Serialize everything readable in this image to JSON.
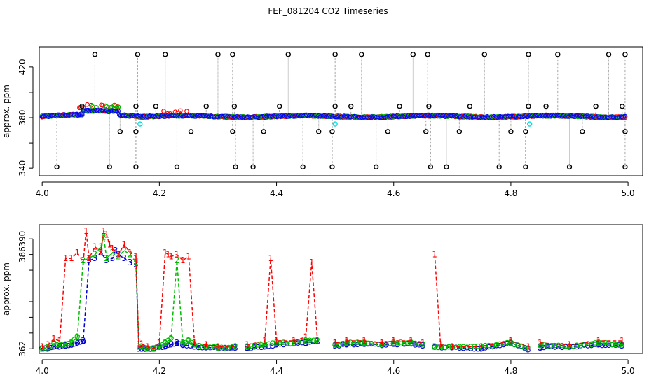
{
  "title": "FEF_081204  CO2 Timeseries",
  "chart_data": [
    {
      "type": "scatter",
      "name": "top-panel",
      "ylabel": "approx. ppm",
      "xlim": [
        3.995,
        5.025
      ],
      "ylim": [
        334,
        436
      ],
      "xticks": [
        4.0,
        4.2,
        4.4,
        4.6,
        4.8,
        5.0
      ],
      "xtick_labels": [
        "4.0",
        "4.2",
        "4.4",
        "4.6",
        "4.8",
        "5.0"
      ],
      "yticks": [
        340,
        360,
        380,
        400,
        420
      ],
      "ytick_labels": [
        "340",
        "",
        "380",
        "",
        "420"
      ],
      "segments": [
        [
          4.0,
          4.165
        ],
        [
          4.168,
          4.33
        ],
        [
          4.333,
          4.497
        ],
        [
          4.5,
          4.663
        ],
        [
          4.666,
          4.83
        ],
        [
          4.833,
          4.995
        ]
      ],
      "baseline_ppm": 381,
      "outliers_high": [
        4.09,
        4.163,
        4.21,
        4.3,
        4.325,
        4.42,
        4.5,
        4.545,
        4.633,
        4.658,
        4.755,
        4.83,
        4.88,
        4.967,
        4.995
      ],
      "outliers_low": [
        4.025,
        4.115,
        4.16,
        4.23,
        4.33,
        4.36,
        4.445,
        4.495,
        4.57,
        4.663,
        4.69,
        4.78,
        4.825,
        4.9,
        4.995
      ],
      "outliers_mid_upper": [
        4.068,
        4.16,
        4.194,
        4.28,
        4.328,
        4.405,
        4.5,
        4.527,
        4.61,
        4.66,
        4.73,
        4.83,
        4.86,
        4.945,
        4.99
      ],
      "outliers_mid_lower": [
        4.133,
        4.16,
        4.254,
        4.325,
        4.378,
        4.472,
        4.495,
        4.59,
        4.655,
        4.712,
        4.8,
        4.825,
        4.922,
        4.995
      ],
      "cyan_points": [
        [
          4.167,
          375
        ],
        [
          4.5,
          375
        ],
        [
          4.832,
          375
        ]
      ],
      "series_colors": {
        "ch1": "#ff0000",
        "ch2": "#00bb00",
        "ch3": "#0000ff",
        "outlier": "#000000",
        "cyan": "#00dddd"
      }
    },
    {
      "type": "line",
      "name": "bottom-panel",
      "ylabel": "approx. ppm",
      "xlim": [
        3.995,
        5.025
      ],
      "ylim": [
        360.8,
        393.6
      ],
      "xticks": [
        4.0,
        4.2,
        4.4,
        4.6,
        4.8,
        5.0
      ],
      "xtick_labels": [
        "4.0",
        "4.2",
        "4.4",
        "4.6",
        "4.8",
        "5.0"
      ],
      "yticks": [
        362,
        366,
        370,
        374,
        378,
        382,
        386,
        390
      ],
      "ytick_labels": [
        "362",
        "",
        "",
        "",
        "",
        "",
        "386",
        "390"
      ],
      "gaps": [
        [
          4.165,
          4.168
        ],
        [
          4.33,
          4.333
        ],
        [
          4.497,
          4.5
        ],
        [
          4.663,
          4.666
        ],
        [
          4.83,
          4.833
        ]
      ],
      "series": [
        {
          "name": "1",
          "color": "#ff0000",
          "x": [
            4.0,
            4.01,
            4.02,
            4.03,
            4.04,
            4.05,
            4.06,
            4.07,
            4.075,
            4.08,
            4.09,
            4.1,
            4.105,
            4.11,
            4.115,
            4.12,
            4.13,
            4.14,
            4.15,
            4.16,
            4.165,
            4.17,
            4.18,
            4.19,
            4.2,
            4.21,
            4.215,
            4.22,
            4.23,
            4.24,
            4.25,
            4.26,
            4.28,
            4.3,
            4.33,
            4.35,
            4.38,
            4.39,
            4.4,
            4.43,
            4.45,
            4.46,
            4.47,
            4.5,
            4.52,
            4.55,
            4.58,
            4.6,
            4.63,
            4.65,
            4.67,
            4.68,
            4.7,
            4.75,
            4.8,
            4.83,
            4.85,
            4.9,
            4.95,
            4.99
          ],
          "y": [
            362.5,
            363.0,
            364.5,
            364.0,
            385.0,
            385.0,
            386.5,
            384.0,
            392.0,
            385.0,
            388.0,
            386.5,
            392.0,
            391.0,
            388.5,
            387.5,
            386.0,
            388.5,
            386.5,
            385.5,
            363.0,
            363.2,
            362.5,
            362.0,
            363.5,
            386.5,
            386.0,
            385.5,
            386.0,
            384.5,
            385.5,
            363.5,
            363.0,
            362.5,
            362.5,
            363.0,
            364.0,
            385.0,
            364.0,
            364.0,
            365.0,
            384.0,
            364.0,
            363.5,
            364.0,
            364.0,
            363.5,
            364.0,
            364.0,
            363.5,
            386.0,
            363.0,
            362.5,
            362.5,
            364.0,
            362.5,
            363.5,
            363.0,
            364.0,
            364.0
          ]
        },
        {
          "name": "2",
          "color": "#00bb00",
          "x": [
            4.0,
            4.01,
            4.02,
            4.03,
            4.04,
            4.05,
            4.06,
            4.07,
            4.08,
            4.09,
            4.1,
            4.105,
            4.11,
            4.12,
            4.13,
            4.14,
            4.15,
            4.16,
            4.165,
            4.17,
            4.18,
            4.19,
            4.2,
            4.21,
            4.22,
            4.23,
            4.24,
            4.25,
            4.26,
            4.28,
            4.3,
            4.33,
            4.35,
            4.38,
            4.4,
            4.43,
            4.45,
            4.47,
            4.5,
            4.52,
            4.55,
            4.58,
            4.6,
            4.63,
            4.65,
            4.67,
            4.7,
            4.75,
            4.8,
            4.83,
            4.85,
            4.9,
            4.95,
            4.99
          ],
          "y": [
            362.0,
            362.3,
            363.3,
            363.0,
            363.0,
            363.5,
            365.0,
            384.5,
            385.0,
            386.0,
            388.0,
            390.5,
            385.0,
            386.5,
            385.5,
            387.0,
            386.0,
            384.0,
            362.5,
            362.5,
            362.0,
            362.0,
            362.5,
            363.5,
            364.5,
            384.5,
            363.5,
            364.0,
            363.0,
            362.5,
            362.3,
            362.5,
            362.5,
            363.0,
            363.5,
            363.5,
            364.0,
            364.0,
            363.0,
            363.5,
            363.5,
            363.0,
            363.5,
            363.5,
            363.0,
            362.5,
            362.5,
            362.5,
            363.5,
            362.0,
            363.0,
            362.5,
            363.5,
            363.0
          ]
        },
        {
          "name": "3",
          "color": "#0000cc",
          "x": [
            4.0,
            4.01,
            4.02,
            4.03,
            4.04,
            4.05,
            4.06,
            4.07,
            4.08,
            4.09,
            4.1,
            4.11,
            4.12,
            4.125,
            4.13,
            4.14,
            4.15,
            4.16,
            4.165,
            4.17,
            4.18,
            4.19,
            4.2,
            4.21,
            4.22,
            4.23,
            4.24,
            4.26,
            4.28,
            4.3,
            4.33,
            4.35,
            4.38,
            4.4,
            4.43,
            4.45,
            4.47,
            4.5,
            4.52,
            4.55,
            4.58,
            4.6,
            4.63,
            4.65,
            4.67,
            4.7,
            4.75,
            4.8,
            4.83,
            4.85,
            4.9,
            4.95,
            4.99
          ],
          "y": [
            362.0,
            362.0,
            362.5,
            362.5,
            362.8,
            363.0,
            363.5,
            364.0,
            384.5,
            385.0,
            386.5,
            384.5,
            385.0,
            387.0,
            386.0,
            385.0,
            384.0,
            383.5,
            362.0,
            362.0,
            362.0,
            362.0,
            362.5,
            362.5,
            363.0,
            363.5,
            363.0,
            362.5,
            362.3,
            362.2,
            362.2,
            362.2,
            362.5,
            363.0,
            363.3,
            363.5,
            363.8,
            362.8,
            363.0,
            363.2,
            363.0,
            363.2,
            363.3,
            362.8,
            362.5,
            362.3,
            362.0,
            363.5,
            361.8,
            362.3,
            362.5,
            363.0,
            362.8
          ]
        }
      ]
    }
  ]
}
